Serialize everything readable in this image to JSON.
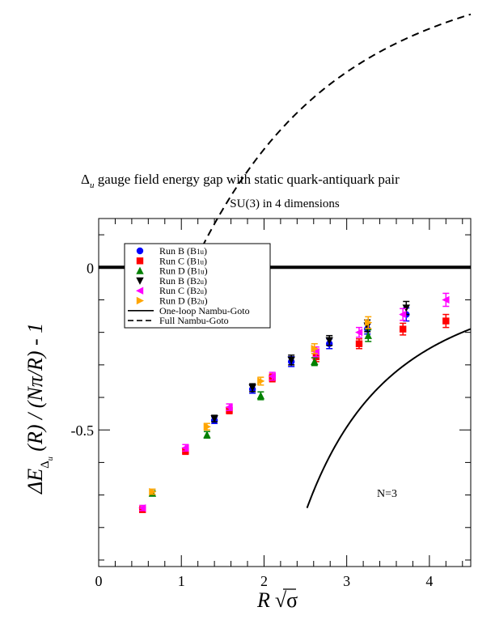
{
  "chart_data": {
    "type": "scatter",
    "title_symbol": "Δ",
    "title_symbol_sub": "u",
    "title_rest": " gauge field energy gap with static quark-antiquark pair",
    "subtitle": "SU(3) in 4 dimensions",
    "xlabel_main": "R",
    "xlabel_sqrt": "√",
    "xlabel_sigma": "σ",
    "ylabel_pre": "ΔE",
    "ylabel_sub1": "Δ",
    "ylabel_sub2": "u",
    "ylabel_post": "(R) / (Nπ/R) - 1",
    "annotation": "N=3",
    "xlim": [
      0,
      4.5
    ],
    "ylim": [
      -0.92,
      0.15
    ],
    "x_ticks": [
      0,
      1,
      2,
      3,
      4
    ],
    "x_tick_labels": [
      "0",
      "1",
      "2",
      "3",
      "4"
    ],
    "y_ticks": [
      0,
      -0.5
    ],
    "y_tick_labels": [
      "0",
      "-0.5"
    ],
    "reference_line_y": 0,
    "legend_position": "top-left",
    "series": [
      {
        "name": "Run B (B",
        "name_sub": "1u",
        "name_close": ")",
        "marker": "circle",
        "color": "#0000ff",
        "points": [
          [
            1.4,
            -0.47
          ],
          [
            1.86,
            -0.375
          ],
          [
            2.33,
            -0.29
          ],
          [
            2.79,
            -0.235
          ],
          [
            3.25,
            -0.19
          ],
          [
            3.72,
            -0.145
          ]
        ],
        "errors": [
          0.01,
          0.012,
          0.015,
          0.015,
          0.015,
          0.02
        ]
      },
      {
        "name": "Run C (B",
        "name_sub": "1u",
        "name_close": ")",
        "marker": "square",
        "color": "#ff0000",
        "points": [
          [
            0.53,
            -0.745
          ],
          [
            1.05,
            -0.565
          ],
          [
            1.58,
            -0.44
          ],
          [
            2.1,
            -0.34
          ],
          [
            2.63,
            -0.275
          ],
          [
            3.15,
            -0.235
          ],
          [
            3.68,
            -0.19
          ],
          [
            4.2,
            -0.165
          ]
        ],
        "errors": [
          0.008,
          0.01,
          0.01,
          0.012,
          0.015,
          0.015,
          0.018,
          0.02
        ]
      },
      {
        "name": "Run D (B",
        "name_sub": "1u",
        "name_close": ")",
        "marker": "triangle-up",
        "color": "#008000",
        "points": [
          [
            0.65,
            -0.695
          ],
          [
            1.31,
            -0.515
          ],
          [
            1.96,
            -0.395
          ],
          [
            2.61,
            -0.29
          ],
          [
            3.26,
            -0.21
          ]
        ],
        "errors": [
          0.008,
          0.01,
          0.012,
          0.012,
          0.018
        ]
      },
      {
        "name": "Run B (B",
        "name_sub": "2u",
        "name_close": ")",
        "marker": "triangle-down",
        "color": "#000000",
        "points": [
          [
            1.4,
            -0.465
          ],
          [
            1.86,
            -0.37
          ],
          [
            2.33,
            -0.285
          ],
          [
            2.79,
            -0.225
          ],
          [
            3.25,
            -0.18
          ],
          [
            3.72,
            -0.125
          ]
        ],
        "errors": [
          0.01,
          0.012,
          0.015,
          0.015,
          0.018,
          0.02
        ]
      },
      {
        "name": "Run C (B",
        "name_sub": "2u",
        "name_close": ")",
        "marker": "triangle-left",
        "color": "#ff00ff",
        "points": [
          [
            0.53,
            -0.74
          ],
          [
            1.05,
            -0.555
          ],
          [
            1.58,
            -0.43
          ],
          [
            2.1,
            -0.335
          ],
          [
            2.63,
            -0.26
          ],
          [
            3.15,
            -0.2
          ],
          [
            3.68,
            -0.145
          ],
          [
            4.2,
            -0.1
          ]
        ],
        "errors": [
          0.008,
          0.01,
          0.01,
          0.012,
          0.015,
          0.015,
          0.018,
          0.02
        ]
      },
      {
        "name": "Run D (B",
        "name_sub": "2u",
        "name_close": ")",
        "marker": "triangle-right",
        "color": "#ffa500",
        "points": [
          [
            0.65,
            -0.69
          ],
          [
            1.31,
            -0.49
          ],
          [
            1.96,
            -0.35
          ],
          [
            2.61,
            -0.25
          ],
          [
            3.26,
            -0.17
          ]
        ],
        "errors": [
          0.008,
          0.01,
          0.012,
          0.015,
          0.018
        ]
      }
    ],
    "curves": [
      {
        "name": "One-loop Nambu-Goto",
        "style": "solid",
        "function": "one_loop",
        "x_range": [
          2.52,
          4.5
        ]
      },
      {
        "name": "Full Nambu-Goto",
        "style": "dashed",
        "function": "full",
        "x_range": [
          1.0,
          4.5
        ]
      }
    ]
  }
}
